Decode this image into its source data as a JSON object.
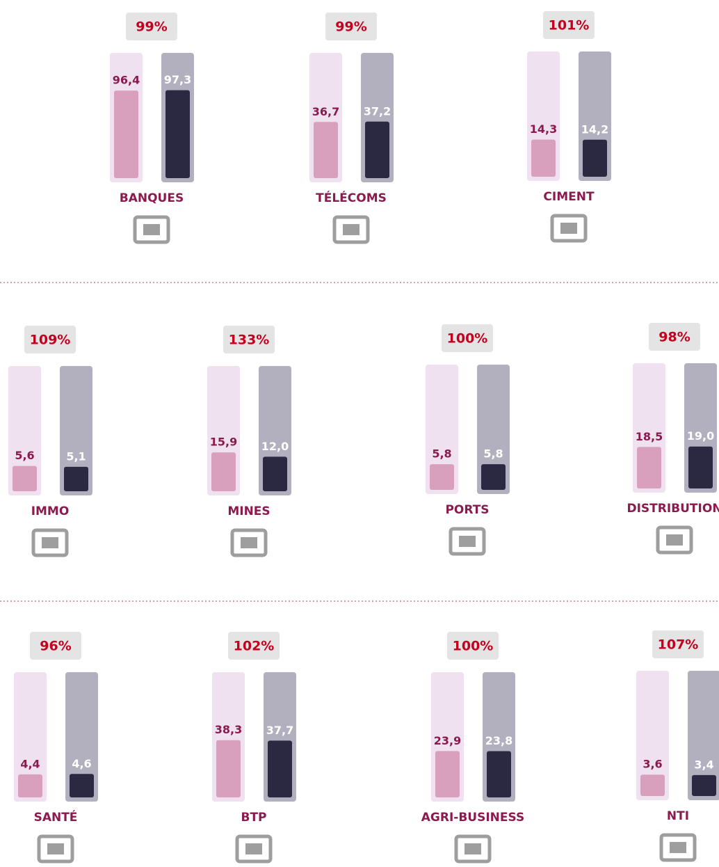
{
  "chart_data": [
    {
      "type": "bar",
      "title": "BANQUES",
      "annotation": "99%",
      "values": [
        96.4,
        97.3
      ],
      "value_labels": [
        "96,4",
        "97,3"
      ],
      "colors": [
        "#d9a0bd",
        "#2b2842"
      ]
    },
    {
      "type": "bar",
      "title": "TÉLÉCOMS",
      "annotation": "99%",
      "values": [
        36.7,
        37.2
      ],
      "value_labels": [
        "36,7",
        "37,2"
      ],
      "colors": [
        "#d9a0bd",
        "#2b2842"
      ]
    },
    {
      "type": "bar",
      "title": "CIMENT",
      "annotation": "101%",
      "values": [
        14.3,
        14.2
      ],
      "value_labels": [
        "14,3",
        "14,2"
      ],
      "colors": [
        "#d9a0bd",
        "#2b2842"
      ]
    },
    {
      "type": "bar",
      "title": "IMMO",
      "annotation": "109%",
      "values": [
        5.6,
        5.1
      ],
      "value_labels": [
        "5,6",
        "5,1"
      ],
      "colors": [
        "#d9a0bd",
        "#2b2842"
      ]
    },
    {
      "type": "bar",
      "title": "MINES",
      "annotation": "133%",
      "values": [
        15.9,
        12.0
      ],
      "value_labels": [
        "15,9",
        "12,0"
      ],
      "colors": [
        "#d9a0bd",
        "#2b2842"
      ]
    },
    {
      "type": "bar",
      "title": "PORTS",
      "annotation": "100%",
      "values": [
        5.8,
        5.8
      ],
      "value_labels": [
        "5,8",
        "5,8"
      ],
      "colors": [
        "#d9a0bd",
        "#2b2842"
      ]
    },
    {
      "type": "bar",
      "title": "DISTRIBUTION",
      "annotation": "98%",
      "values": [
        18.5,
        19.0
      ],
      "value_labels": [
        "18,5",
        "19,0"
      ],
      "colors": [
        "#d9a0bd",
        "#2b2842"
      ]
    },
    {
      "type": "bar",
      "title": "SANTÉ",
      "annotation": "96%",
      "values": [
        4.4,
        4.6
      ],
      "value_labels": [
        "4,4",
        "4,6"
      ],
      "colors": [
        "#d9a0bd",
        "#2b2842"
      ]
    },
    {
      "type": "bar",
      "title": "BTP",
      "annotation": "102%",
      "values": [
        38.3,
        37.7
      ],
      "value_labels": [
        "38,3",
        "37,7"
      ],
      "colors": [
        "#d9a0bd",
        "#2b2842"
      ]
    },
    {
      "type": "bar",
      "title": "AGRI-BUSINESS",
      "annotation": "100%",
      "values": [
        23.9,
        23.8
      ],
      "value_labels": [
        "23,9",
        "23,8"
      ],
      "colors": [
        "#d9a0bd",
        "#2b2842"
      ]
    },
    {
      "type": "bar",
      "title": "NTI",
      "annotation": "107%",
      "values": [
        3.6,
        3.4
      ],
      "value_labels": [
        "3,6",
        "3,4"
      ],
      "colors": [
        "#d9a0bd",
        "#2b2842"
      ]
    }
  ]
}
